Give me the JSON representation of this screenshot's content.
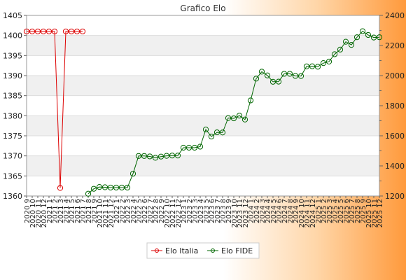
{
  "chart_data": {
    "type": "line",
    "title": "Grafico Elo",
    "xlabel": "",
    "ylabel": "",
    "y2label": "",
    "x_tick_labels": [
      "2020 9",
      "2020 10",
      "2020 11",
      "2020 12",
      "2021 1",
      "2021 2",
      "2021 3",
      "2021 4",
      "2021 5",
      "2021 6",
      "2021 7",
      "2021 8",
      "2021 9",
      "2021 10",
      "2021 11",
      "2021 12",
      "2022 1",
      "2022 2",
      "2022 3",
      "2022 4",
      "2022 5",
      "2022 6",
      "2022 7",
      "2022 8",
      "2022 9",
      "2022 10",
      "2022 11",
      "2022 12",
      "2023 1",
      "2023 2",
      "2023 3",
      "2023 4",
      "2023 5",
      "2023 6",
      "2023 7",
      "2023 8",
      "2023 9",
      "2023 10",
      "2023 11",
      "2023 12",
      "2024 1",
      "2024 2",
      "2024 3",
      "2024 4",
      "2024 5",
      "2024 6",
      "2024 7",
      "2024 8",
      "2024 9",
      "2024 10",
      "2024 11",
      "2024 12",
      "2025 1",
      "2025 2",
      "2025 3",
      "2025 4",
      "2025 5",
      "2025 6",
      "2025 7",
      "2025 8",
      "2025 9",
      "2025 10",
      "2025 11",
      "2025 12"
    ],
    "ylim_left": [
      1360,
      1405
    ],
    "yticks_left": [
      1360,
      1365,
      1370,
      1375,
      1380,
      1385,
      1390,
      1395,
      1400,
      1405
    ],
    "ylim_right": [
      1200,
      2400
    ],
    "yticks_right": [
      1200,
      1400,
      1600,
      1800,
      2000,
      2200,
      2400
    ],
    "legend_position": "bottom-center",
    "series": [
      {
        "name": "Elo Italia",
        "axis": "left",
        "color": "#dd0000",
        "x": [
          "2020 9",
          "2020 10",
          "2020 11",
          "2020 12",
          "2021 1",
          "2021 2",
          "2021 3",
          "2021 4",
          "2021 5",
          "2021 6",
          "2021 7"
        ],
        "values": [
          1401,
          1401,
          1401,
          1401,
          1401,
          1401,
          1362,
          1401,
          1401,
          1401,
          1401
        ]
      },
      {
        "name": "Elo FIDE",
        "axis": "right",
        "color": "#006600",
        "x": [
          "2021 8",
          "2021 9",
          "2021 10",
          "2021 11",
          "2021 12",
          "2022 1",
          "2022 2",
          "2022 3",
          "2022 4",
          "2022 5",
          "2022 6",
          "2022 7",
          "2022 8",
          "2022 9",
          "2022 10",
          "2022 11",
          "2022 12",
          "2023 1",
          "2023 2",
          "2023 3",
          "2023 4",
          "2023 5",
          "2023 6",
          "2023 7",
          "2023 8",
          "2023 9",
          "2023 10",
          "2023 11",
          "2023 12",
          "2024 1",
          "2024 2",
          "2024 3",
          "2024 4",
          "2024 5",
          "2024 6",
          "2024 7",
          "2024 8",
          "2024 9",
          "2024 10",
          "2024 11",
          "2024 12",
          "2025 1",
          "2025 2",
          "2025 3",
          "2025 4",
          "2025 5",
          "2025 6",
          "2025 7",
          "2025 8",
          "2025 9",
          "2025 10",
          "2025 11",
          "2025 12"
        ],
        "values": [
          1215,
          1248,
          1260,
          1258,
          1256,
          1256,
          1256,
          1256,
          1348,
          1466,
          1466,
          1463,
          1454,
          1462,
          1467,
          1469,
          1469,
          1521,
          1521,
          1521,
          1528,
          1642,
          1595,
          1623,
          1622,
          1718,
          1716,
          1734,
          1708,
          1835,
          1980,
          2026,
          2001,
          1959,
          1960,
          2012,
          2012,
          1998,
          1997,
          2061,
          2062,
          2059,
          2083,
          2093,
          2142,
          2173,
          2225,
          2204,
          2255,
          2295,
          2270,
          2253,
          2255
        ]
      }
    ]
  }
}
